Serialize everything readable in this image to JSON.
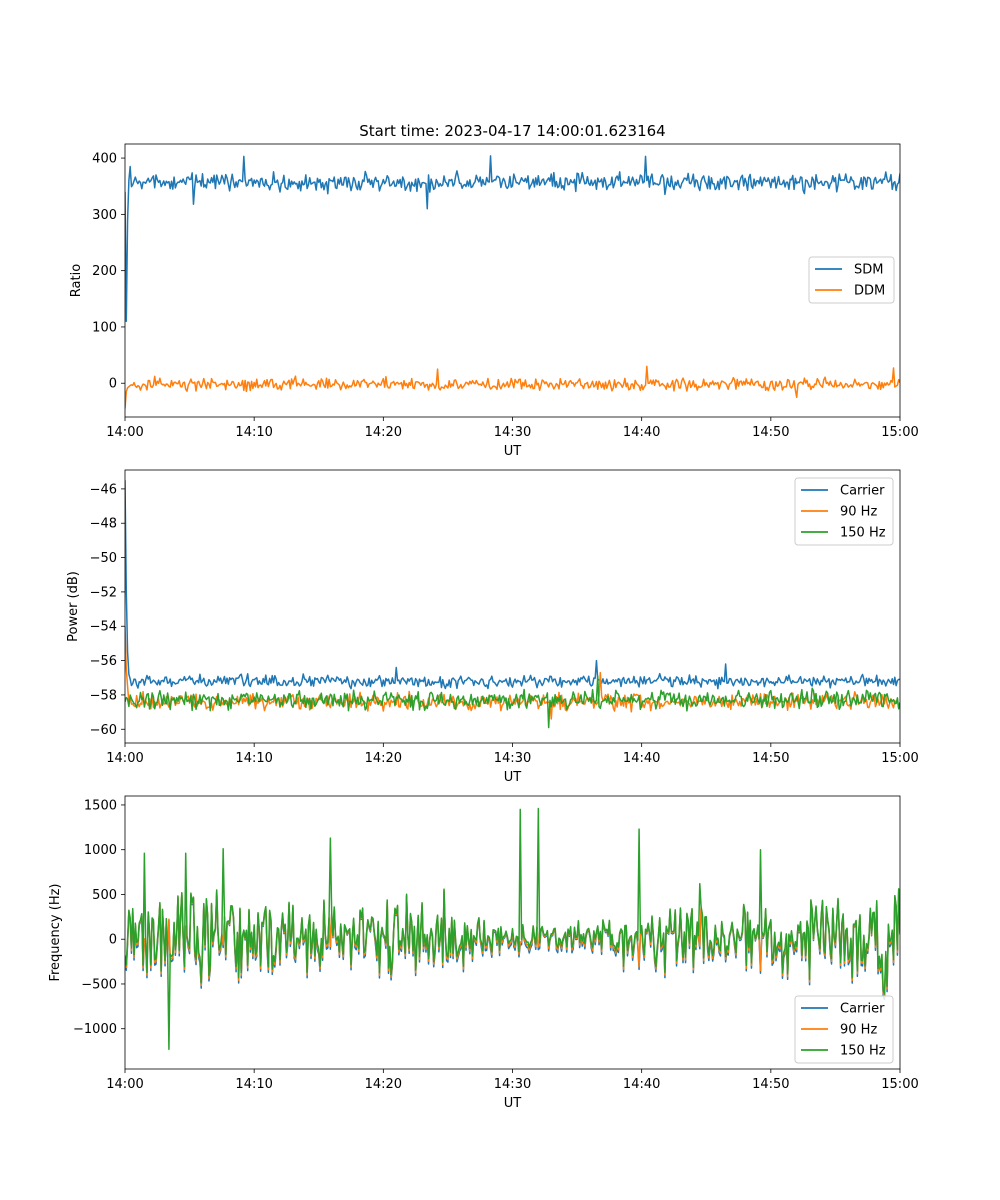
{
  "figure": {
    "title": "Start time: 2023-04-17 14:00:01.623164"
  },
  "colors": {
    "blue": "#1f77b4",
    "orange": "#ff7f0e",
    "green": "#2ca02c"
  },
  "chart_data": [
    {
      "type": "line",
      "title": "Start time: 2023-04-17 14:00:01.623164",
      "xlabel": "UT",
      "ylabel": "Ratio",
      "xlim": [
        "14:00",
        "15:00"
      ],
      "ylim": [
        -60,
        425
      ],
      "x_ticks": [
        "14:00",
        "14:10",
        "14:20",
        "14:30",
        "14:40",
        "14:50",
        "15:00"
      ],
      "y_ticks": [
        0,
        100,
        200,
        300,
        400
      ],
      "y_tick_labels": [
        "0",
        "100",
        "200",
        "300",
        "400"
      ],
      "legend": "center-right",
      "legend_entries": [
        "SDM",
        "DDM"
      ],
      "series": [
        {
          "name": "SDM",
          "color": "#1f77b4",
          "start_values": [
            340,
            110,
            290,
            360,
            385
          ],
          "mean": 357,
          "noise": 13,
          "spikes": [
            [
              9.2,
              403
            ],
            [
              28.3,
              404
            ],
            [
              40.3,
              403
            ],
            [
              5.3,
              318
            ],
            [
              23.4,
              310
            ]
          ]
        },
        {
          "name": "DDM",
          "color": "#ff7f0e",
          "start_values": [
            -45,
            -15,
            -8
          ],
          "mean": -2,
          "noise": 9,
          "spikes": [
            [
              24.2,
              25
            ],
            [
              40.4,
              30
            ],
            [
              59.5,
              27
            ],
            [
              52.0,
              -25
            ]
          ]
        }
      ]
    },
    {
      "type": "line",
      "xlabel": "UT",
      "ylabel": "Power (dB)",
      "xlim": [
        "14:00",
        "15:00"
      ],
      "ylim": [
        -60.8,
        -44.9
      ],
      "x_ticks": [
        "14:00",
        "14:10",
        "14:20",
        "14:30",
        "14:40",
        "14:50",
        "15:00"
      ],
      "y_ticks": [
        -60,
        -58,
        -56,
        -54,
        -52,
        -50,
        -48,
        -46
      ],
      "y_tick_labels": [
        "−60",
        "−58",
        "−56",
        "−54",
        "−52",
        "−50",
        "−48",
        "−46"
      ],
      "legend": "top-right",
      "legend_entries": [
        "Carrier",
        "90 Hz",
        "150 Hz"
      ],
      "series": [
        {
          "name": "Carrier",
          "color": "#1f77b4",
          "start_values": [
            -45.5,
            -52.0,
            -55.5,
            -56.8
          ],
          "mean": -57.2,
          "noise": 0.3,
          "spikes": [
            [
              36.5,
              -56.0
            ],
            [
              46.5,
              -56.2
            ],
            [
              21.0,
              -56.4
            ]
          ]
        },
        {
          "name": "90 Hz",
          "color": "#ff7f0e",
          "start_values": [
            -54.0,
            -56.5,
            -57.5
          ],
          "mean": -58.4,
          "noise": 0.4,
          "spikes": [
            [
              36.8,
              -56.7
            ],
            [
              33.0,
              -59.4
            ]
          ]
        },
        {
          "name": "150 Hz",
          "color": "#2ca02c",
          "start_values": [
            -58.4
          ],
          "mean": -58.3,
          "noise": 0.45,
          "spikes": [
            [
              36.6,
              -56.9
            ],
            [
              32.8,
              -59.9
            ]
          ]
        }
      ]
    },
    {
      "type": "line",
      "xlabel": "UT",
      "ylabel": "Frequency (Hz)",
      "xlim": [
        "14:00",
        "15:00"
      ],
      "ylim": [
        -1450,
        1600
      ],
      "x_ticks": [
        "14:00",
        "14:10",
        "14:20",
        "14:30",
        "14:40",
        "14:50",
        "15:00"
      ],
      "y_ticks": [
        -1000,
        -500,
        0,
        500,
        1000,
        1500
      ],
      "y_tick_labels": [
        "−1000",
        "−500",
        "0",
        "500",
        "1000",
        "1500"
      ],
      "legend": "bottom-right",
      "legend_entries": [
        "Carrier",
        "90 Hz",
        "150 Hz"
      ],
      "series": [
        {
          "name": "Carrier",
          "color": "#1f77b4",
          "offset": -60
        },
        {
          "name": "90 Hz",
          "color": "#ff7f0e",
          "offset": -30
        },
        {
          "name": "150 Hz",
          "color": "#2ca02c",
          "offset": 0,
          "spikes": [
            [
              30.6,
              1450
            ],
            [
              32.0,
              1460
            ],
            [
              39.8,
              1230
            ],
            [
              15.9,
              1130
            ],
            [
              3.4,
              -1230
            ],
            [
              4.7,
              960
            ],
            [
              7.6,
              1010
            ],
            [
              49.2,
              1000
            ],
            [
              1.5,
              960
            ],
            [
              44.5,
              620
            ]
          ]
        }
      ]
    }
  ]
}
